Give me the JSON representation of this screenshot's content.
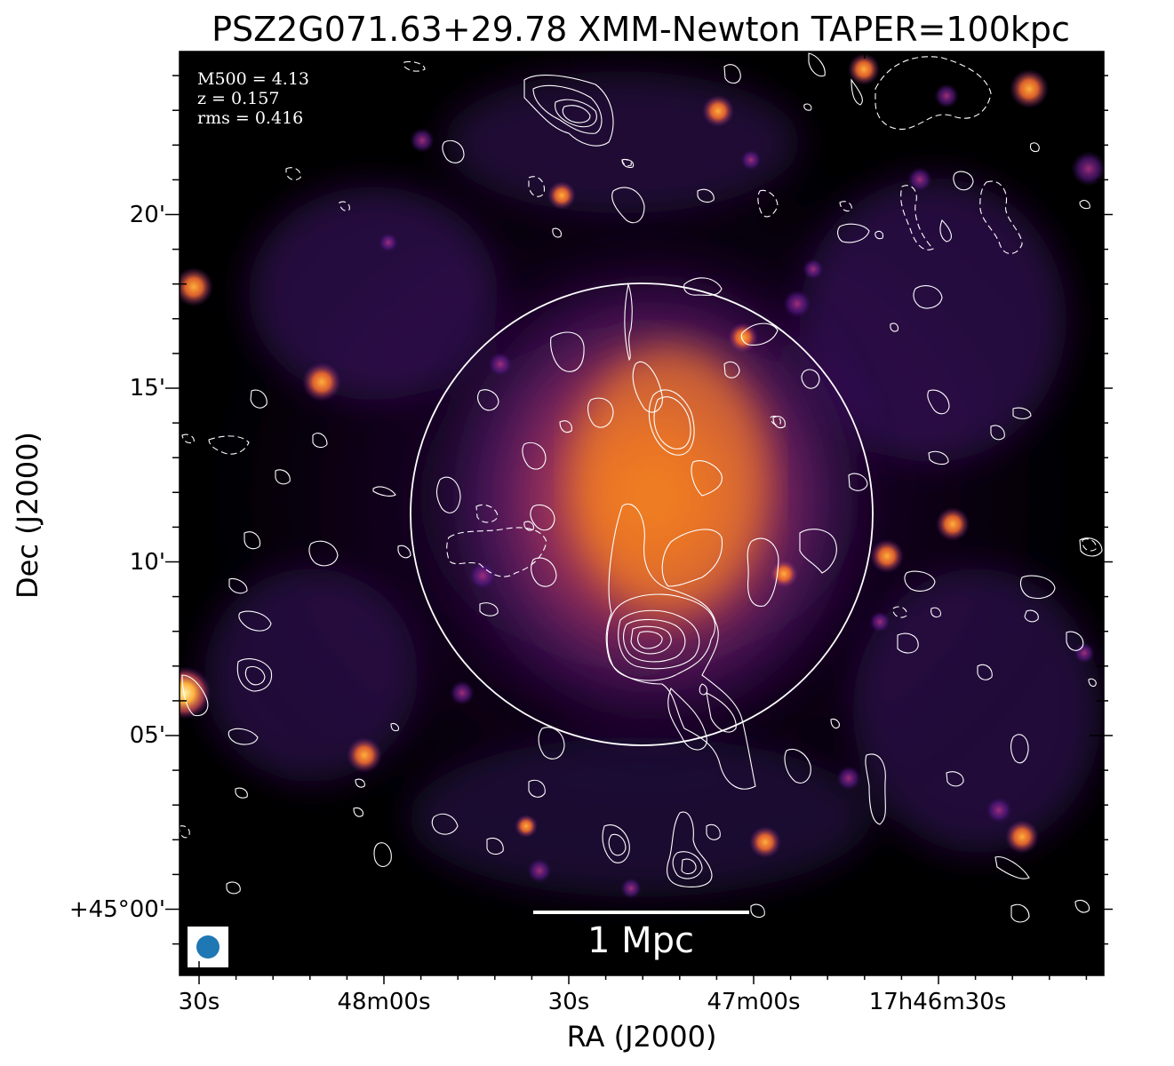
{
  "title": "PSZ2G071.63+29.78 XMM-Newton TAPER=100kpc",
  "axes": {
    "xlabel": "RA (J2000)",
    "ylabel": "Dec (J2000)",
    "xticks": [
      "30s",
      "48m00s",
      "30s",
      "47m00s",
      "17h46m30s"
    ],
    "yticks": [
      "20'",
      "15'",
      "10'",
      "05'",
      "+45°00'"
    ]
  },
  "info": {
    "m500": "M500 = 4.13",
    "z": "z = 0.157",
    "rms": "rms = 0.416"
  },
  "scalebar": {
    "label": "1 Mpc"
  },
  "colors": {
    "background": "#050308",
    "contour": "#ffffff",
    "beam": "#1f77b4",
    "colormap": [
      "#000004",
      "#3b0f70",
      "#8c2981",
      "#de4968",
      "#fe9f6d",
      "#fcfdbf"
    ]
  }
}
